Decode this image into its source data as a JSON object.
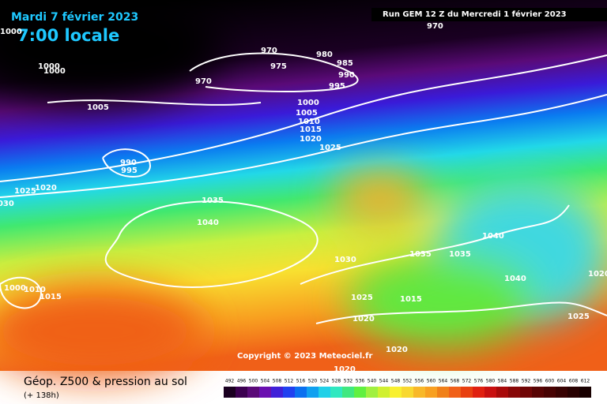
{
  "header": {
    "date": "Mardi 7 février 2023",
    "time": "7:00 locale",
    "run": "Run GEM 12 Z du Mercredi 1 février 2023"
  },
  "isobar_labels": [
    1000,
    970,
    970,
    980,
    975,
    985,
    990,
    970,
    995,
    1000,
    1000,
    1005,
    1000,
    1005,
    1010,
    1015,
    1020,
    1025,
    990,
    995,
    1025,
    1020,
    1030,
    1035,
    1040,
    1030,
    1035,
    1035,
    1040,
    1040,
    1020,
    1000,
    1010,
    1015,
    1025,
    1015,
    1020,
    1025,
    1020,
    1020
  ],
  "copyright": "Copyright © 2023 Meteociel.fr",
  "legend": {
    "title": "Géop. Z500 & pression au sol",
    "forecast": "(+ 138h)",
    "scale": [
      492,
      496,
      500,
      504,
      508,
      512,
      516,
      520,
      524,
      528,
      532,
      536,
      540,
      544,
      548,
      552,
      556,
      560,
      564,
      568,
      572,
      576,
      580,
      584,
      588,
      592,
      596,
      600,
      604,
      608,
      612
    ]
  }
}
